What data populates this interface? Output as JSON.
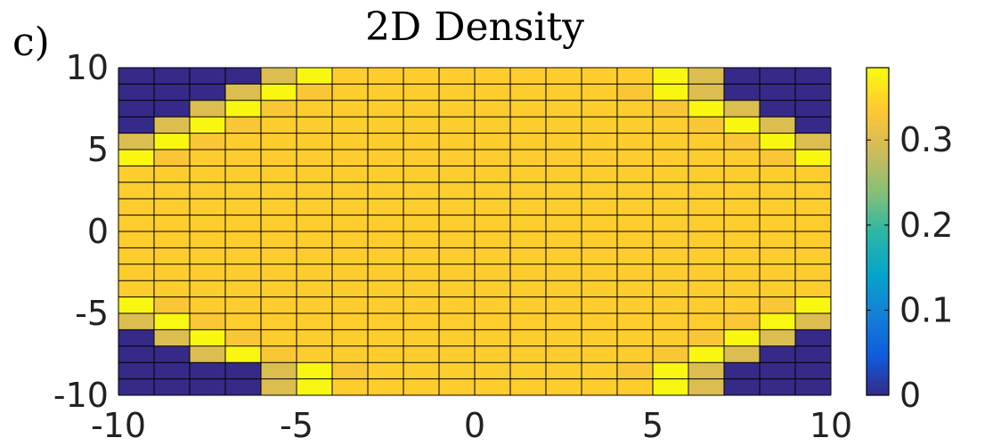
{
  "panel_label": "c)",
  "chart_data": {
    "type": "heatmap",
    "title": "2D Density",
    "xlabel": "",
    "ylabel": "",
    "xlim": [
      -10,
      10
    ],
    "ylim": [
      -10,
      10
    ],
    "x_ticks": [
      -10,
      -5,
      0,
      5,
      10
    ],
    "y_ticks": [
      -10,
      -5,
      0,
      5,
      10
    ],
    "x_tick_labels": [
      "-10",
      "-5",
      "0",
      "5",
      "10"
    ],
    "y_tick_labels": [
      "-10",
      "-5",
      "0",
      "5",
      "10"
    ],
    "n_cols": 20,
    "n_rows": 20,
    "grid": true,
    "colormap": "parula",
    "colorbar": {
      "range": [
        0,
        0.385
      ],
      "ticks": [
        0,
        0.1,
        0.2,
        0.3
      ],
      "tick_labels": [
        "0",
        "0.1",
        "0.2",
        "0.3"
      ],
      "placement": "right"
    },
    "values_rows_top_to_bottom": [
      [
        0,
        0,
        0,
        0,
        0.3,
        0.38,
        0.34,
        0.34,
        0.34,
        0.34,
        0.34,
        0.34,
        0.34,
        0.34,
        0.34,
        0.38,
        0.3,
        0,
        0,
        0
      ],
      [
        0,
        0,
        0,
        0.3,
        0.38,
        0.33,
        0.34,
        0.34,
        0.34,
        0.34,
        0.34,
        0.34,
        0.34,
        0.34,
        0.33,
        0.38,
        0.3,
        0,
        0,
        0
      ],
      [
        0,
        0,
        0.3,
        0.38,
        0.33,
        0.34,
        0.34,
        0.34,
        0.34,
        0.34,
        0.34,
        0.34,
        0.34,
        0.34,
        0.34,
        0.33,
        0.38,
        0.3,
        0,
        0
      ],
      [
        0,
        0.3,
        0.38,
        0.33,
        0.34,
        0.34,
        0.34,
        0.34,
        0.34,
        0.34,
        0.34,
        0.34,
        0.34,
        0.34,
        0.34,
        0.34,
        0.33,
        0.38,
        0.3,
        0
      ],
      [
        0.3,
        0.38,
        0.33,
        0.34,
        0.34,
        0.34,
        0.34,
        0.34,
        0.34,
        0.34,
        0.34,
        0.34,
        0.34,
        0.34,
        0.34,
        0.34,
        0.34,
        0.33,
        0.38,
        0.3
      ],
      [
        0.38,
        0.33,
        0.34,
        0.34,
        0.34,
        0.34,
        0.34,
        0.34,
        0.34,
        0.34,
        0.34,
        0.34,
        0.34,
        0.34,
        0.34,
        0.34,
        0.34,
        0.34,
        0.33,
        0.38
      ],
      [
        0.34,
        0.34,
        0.34,
        0.34,
        0.34,
        0.34,
        0.34,
        0.34,
        0.34,
        0.34,
        0.34,
        0.34,
        0.34,
        0.34,
        0.34,
        0.34,
        0.34,
        0.34,
        0.34,
        0.34
      ],
      [
        0.34,
        0.34,
        0.34,
        0.34,
        0.34,
        0.34,
        0.34,
        0.34,
        0.34,
        0.34,
        0.34,
        0.34,
        0.34,
        0.34,
        0.34,
        0.34,
        0.34,
        0.34,
        0.34,
        0.34
      ],
      [
        0.34,
        0.34,
        0.34,
        0.34,
        0.34,
        0.34,
        0.34,
        0.34,
        0.34,
        0.34,
        0.34,
        0.34,
        0.34,
        0.34,
        0.34,
        0.34,
        0.34,
        0.34,
        0.34,
        0.34
      ],
      [
        0.34,
        0.34,
        0.34,
        0.34,
        0.34,
        0.34,
        0.34,
        0.34,
        0.34,
        0.34,
        0.34,
        0.34,
        0.34,
        0.34,
        0.34,
        0.34,
        0.34,
        0.34,
        0.34,
        0.34
      ],
      [
        0.34,
        0.34,
        0.34,
        0.34,
        0.34,
        0.34,
        0.34,
        0.34,
        0.34,
        0.34,
        0.34,
        0.34,
        0.34,
        0.34,
        0.34,
        0.34,
        0.34,
        0.34,
        0.34,
        0.34
      ],
      [
        0.34,
        0.34,
        0.34,
        0.34,
        0.34,
        0.34,
        0.34,
        0.34,
        0.34,
        0.34,
        0.34,
        0.34,
        0.34,
        0.34,
        0.34,
        0.34,
        0.34,
        0.34,
        0.34,
        0.34
      ],
      [
        0.34,
        0.34,
        0.34,
        0.34,
        0.34,
        0.34,
        0.34,
        0.34,
        0.34,
        0.34,
        0.34,
        0.34,
        0.34,
        0.34,
        0.34,
        0.34,
        0.34,
        0.34,
        0.34,
        0.34
      ],
      [
        0.34,
        0.34,
        0.34,
        0.34,
        0.34,
        0.34,
        0.34,
        0.34,
        0.34,
        0.34,
        0.34,
        0.34,
        0.34,
        0.34,
        0.34,
        0.34,
        0.34,
        0.34,
        0.34,
        0.34
      ],
      [
        0.38,
        0.33,
        0.34,
        0.34,
        0.34,
        0.34,
        0.34,
        0.34,
        0.34,
        0.34,
        0.34,
        0.34,
        0.34,
        0.34,
        0.34,
        0.34,
        0.34,
        0.34,
        0.33,
        0.38
      ],
      [
        0.3,
        0.38,
        0.33,
        0.34,
        0.34,
        0.34,
        0.34,
        0.34,
        0.34,
        0.34,
        0.34,
        0.34,
        0.34,
        0.34,
        0.34,
        0.34,
        0.34,
        0.33,
        0.38,
        0.3
      ],
      [
        0,
        0.3,
        0.38,
        0.33,
        0.34,
        0.34,
        0.34,
        0.34,
        0.34,
        0.34,
        0.34,
        0.34,
        0.34,
        0.34,
        0.34,
        0.34,
        0.33,
        0.38,
        0.3,
        0
      ],
      [
        0,
        0,
        0.3,
        0.38,
        0.33,
        0.34,
        0.34,
        0.34,
        0.34,
        0.34,
        0.34,
        0.34,
        0.34,
        0.34,
        0.34,
        0.33,
        0.38,
        0.3,
        0,
        0
      ],
      [
        0,
        0,
        0,
        0,
        0.3,
        0.38,
        0.33,
        0.34,
        0.34,
        0.34,
        0.34,
        0.34,
        0.34,
        0.34,
        0.33,
        0.38,
        0.3,
        0,
        0,
        0
      ],
      [
        0,
        0,
        0,
        0,
        0.3,
        0.38,
        0.34,
        0.34,
        0.34,
        0.34,
        0.34,
        0.34,
        0.34,
        0.34,
        0.34,
        0.38,
        0.3,
        0,
        0,
        0
      ]
    ]
  }
}
